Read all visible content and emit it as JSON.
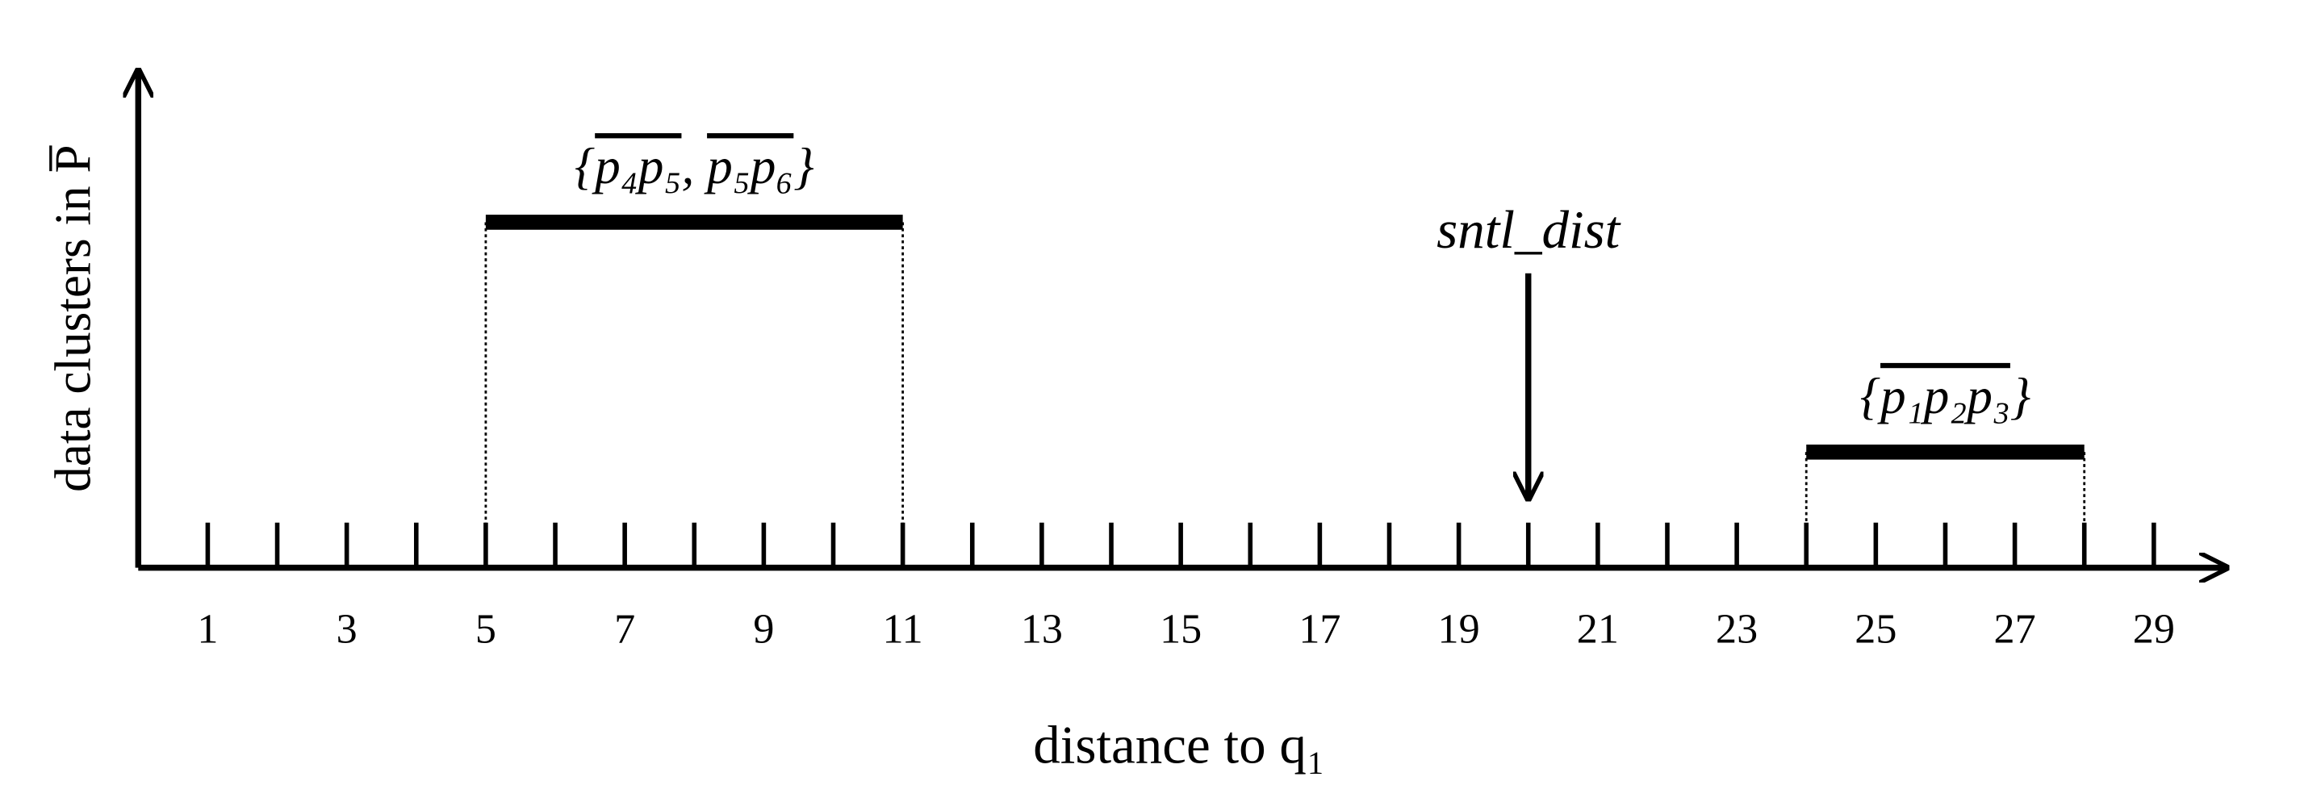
{
  "chart_data": {
    "type": "interval",
    "ylabel": "data clusters in P̅",
    "xlabel": "distance to q₁",
    "xlim": [
      0,
      30
    ],
    "xticks": [
      1,
      3,
      5,
      7,
      9,
      11,
      13,
      15,
      17,
      19,
      21,
      23,
      25,
      27,
      29
    ],
    "minor_xticks": [
      2,
      4,
      6,
      8,
      10,
      12,
      14,
      16,
      18,
      20,
      22,
      24,
      26,
      28
    ],
    "color": "#000000",
    "intervals": [
      {
        "label": [
          "{",
          "p₄p₅",
          ", ",
          "p₅p₆",
          "}"
        ],
        "start": 5,
        "end": 11
      },
      {
        "label": [
          "{",
          "p₁p₂p₃",
          "}"
        ],
        "start": 24,
        "end": 28
      }
    ],
    "marker": {
      "label": "sntl_dist",
      "value": 20
    }
  }
}
